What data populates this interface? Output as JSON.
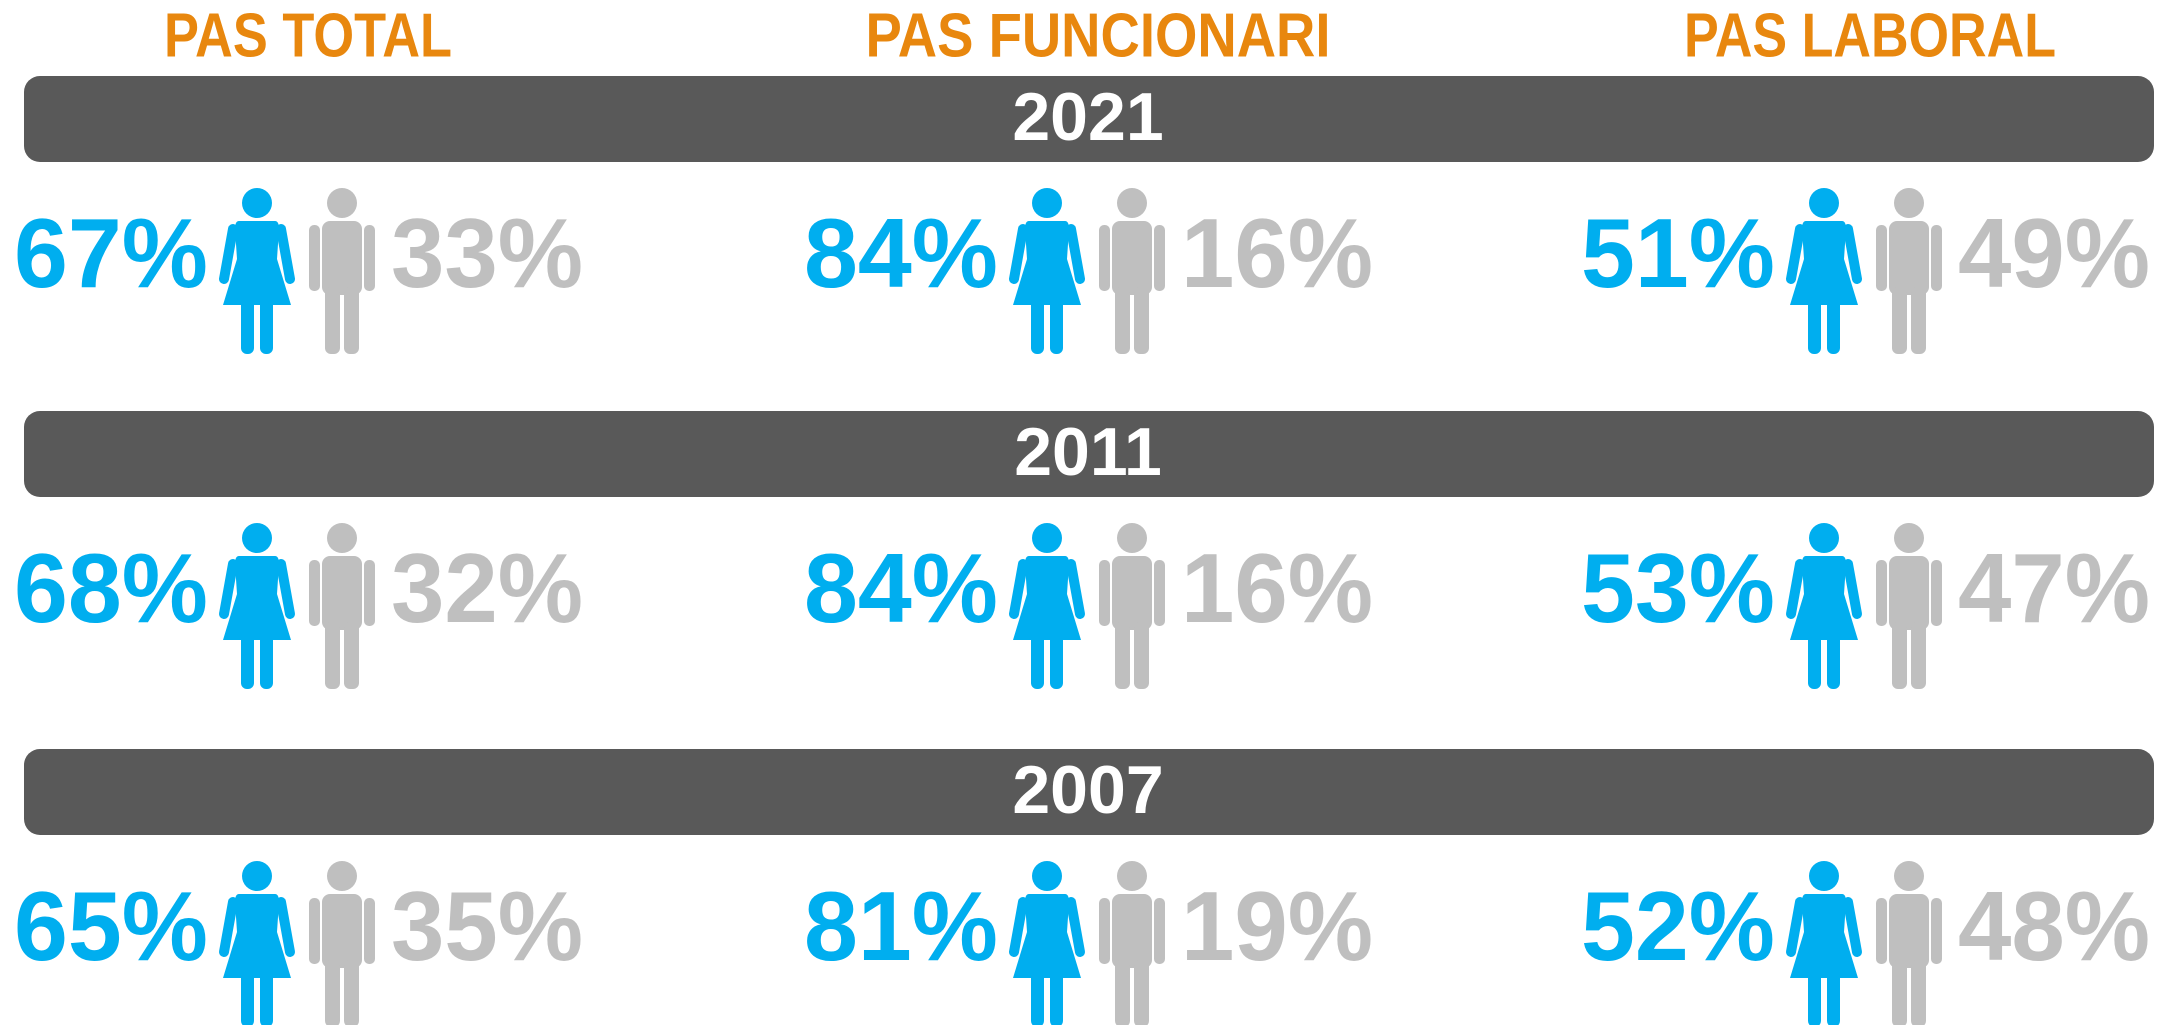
{
  "columns": [
    {
      "title": "PAS TOTAL"
    },
    {
      "title": "PAS FUNCIONARI"
    },
    {
      "title": "PAS LABORAL"
    }
  ],
  "years": [
    {
      "year": "2021",
      "cells": [
        {
          "women": "67%",
          "men": "33%"
        },
        {
          "women": "84%",
          "men": "16%"
        },
        {
          "women": "51%",
          "men": "49%"
        }
      ]
    },
    {
      "year": "2011",
      "cells": [
        {
          "women": "68%",
          "men": "32%"
        },
        {
          "women": "84%",
          "men": "16%"
        },
        {
          "women": "53%",
          "men": "47%"
        }
      ]
    },
    {
      "year": "2007",
      "cells": [
        {
          "women": "65%",
          "men": "35%"
        },
        {
          "women": "81%",
          "men": "19%"
        },
        {
          "women": "52%",
          "men": "48%"
        }
      ]
    }
  ]
}
